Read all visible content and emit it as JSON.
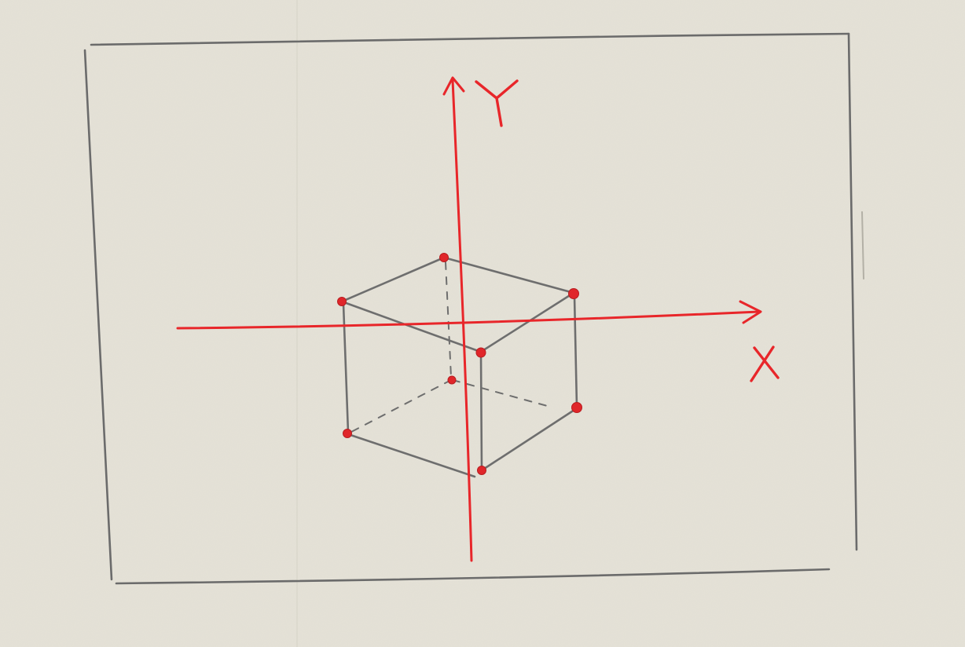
{
  "colors": {
    "paper": "#e5e2d7",
    "pencil": "#6b6b6b",
    "ink": "#e8262a"
  },
  "axes": {
    "x_label": "X",
    "y_label": "Y"
  },
  "cube": {
    "vertex_count": 8,
    "hidden_edges": "dashed"
  }
}
